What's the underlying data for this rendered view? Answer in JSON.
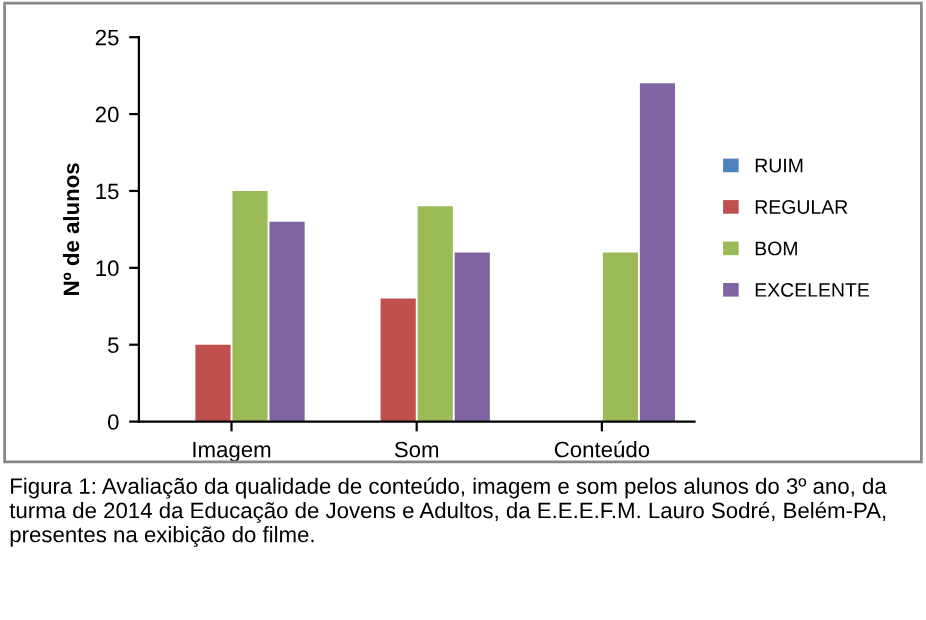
{
  "chart_data": {
    "type": "bar",
    "ylabel": "Nº de alunos",
    "categories": [
      "Imagem",
      "Som",
      "Conteúdo"
    ],
    "series": [
      {
        "name": "RUIM",
        "color": "#4f81bd",
        "values": [
          0,
          0,
          0
        ]
      },
      {
        "name": "REGULAR",
        "color": "#c0504d",
        "values": [
          5,
          8,
          0
        ]
      },
      {
        "name": "BOM",
        "color": "#9bbb59",
        "values": [
          15,
          14,
          11
        ]
      },
      {
        "name": "EXCELENTE",
        "color": "#8064a2",
        "values": [
          13,
          11,
          22
        ]
      }
    ],
    "ylim": [
      0,
      25
    ],
    "yticks": [
      0,
      5,
      10,
      15,
      20,
      25
    ],
    "grid": false,
    "legend": "right",
    "annotations": [
      "Figura 1: Avaliação da qualidade de conteúdo, imagem e som pelos alunos do 3º ano, da turma de 2014 da Educação de Jovens e Adultos, da E.E.E.F.M. Lauro Sodré, Belém-PA, presentes na exibição do filme."
    ]
  }
}
